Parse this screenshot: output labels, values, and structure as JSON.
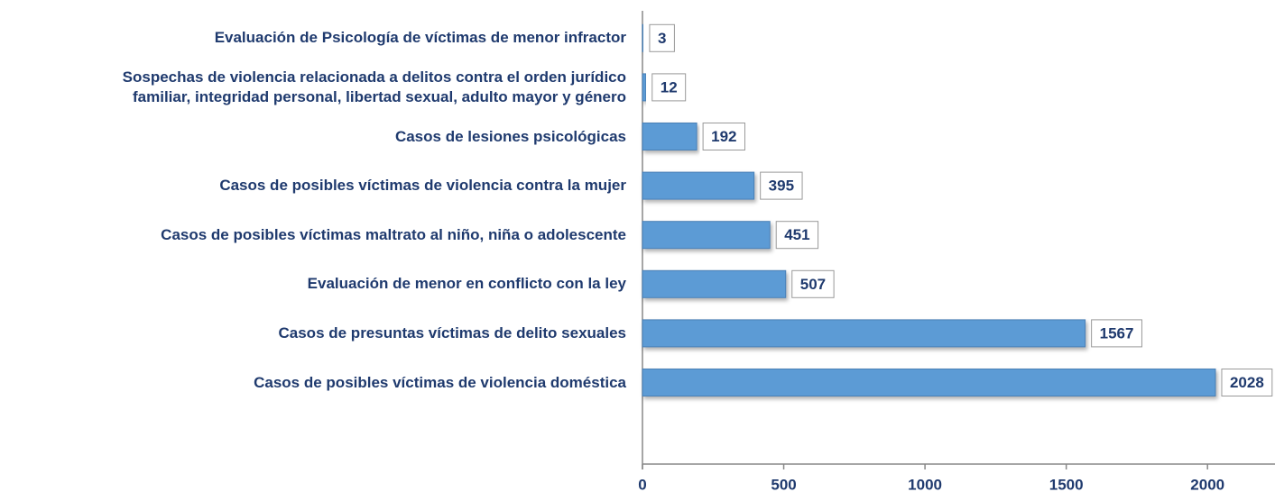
{
  "chart_data": {
    "type": "bar",
    "orientation": "horizontal",
    "categories": [
      "Evaluación de Psicología de víctimas de menor infractor",
      "Sospechas de violencia relacionada a delitos contra el orden jurídico\nfamiliar, integridad personal, libertad sexual, adulto mayor y género",
      "Casos de lesiones psicológicas",
      "Casos de posibles víctimas de violencia contra la mujer",
      "Casos de posibles víctimas maltrato al niño, niña o adolescente",
      "Evaluación de menor en conflicto con la ley",
      "Casos de presuntas víctimas de delito sexuales",
      "Casos de posibles víctimas de violencia doméstica"
    ],
    "values": [
      3,
      12,
      192,
      395,
      451,
      507,
      1567,
      2028
    ],
    "color": "#5b9bd5",
    "xlim": [
      0,
      2200
    ],
    "xticks": [
      0,
      500,
      1000,
      1500,
      2000
    ],
    "grid": false
  }
}
